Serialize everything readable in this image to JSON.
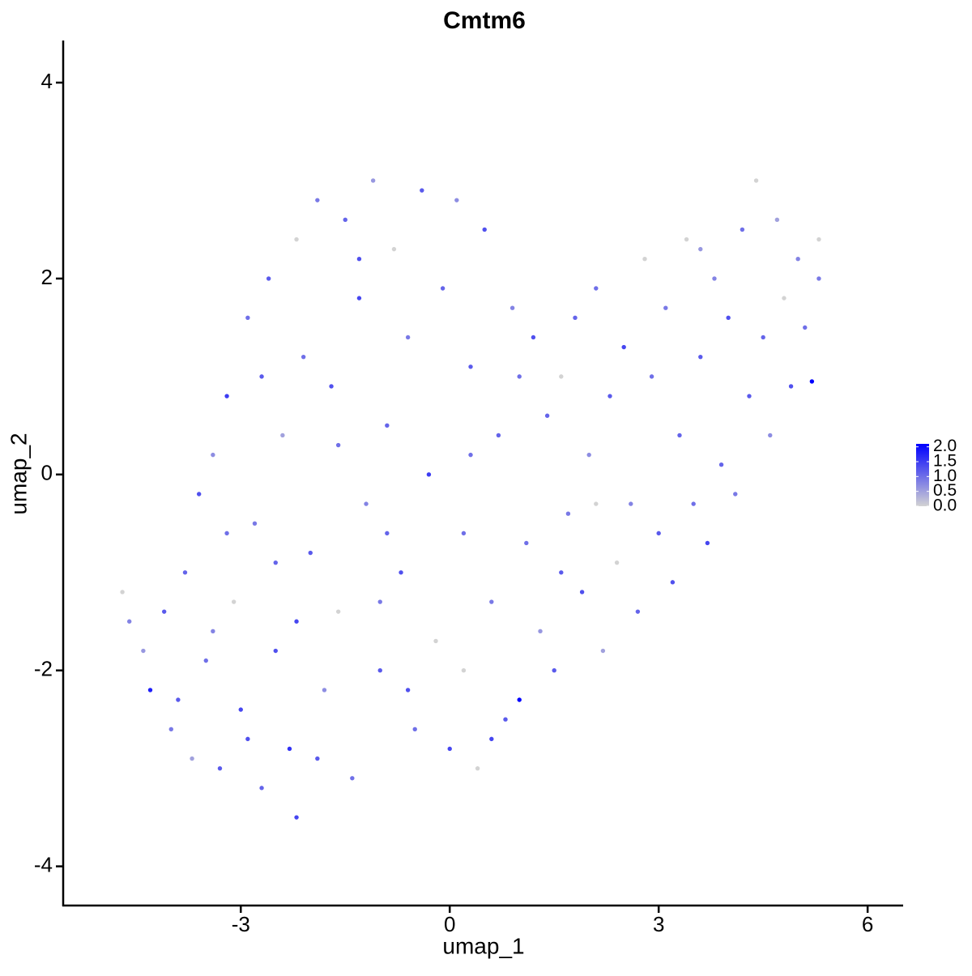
{
  "chart_data": {
    "type": "scatter",
    "title": "Cmtm6",
    "x_label": "umap_1",
    "y_label": "umap_2",
    "xlim": [
      -5.55,
      6.51
    ],
    "ylim": [
      -4.4,
      4.43
    ],
    "xticks": [
      -3,
      0,
      3,
      6
    ],
    "yticks": [
      -4,
      -2,
      0,
      2,
      4
    ],
    "low_color": "#d3d3d3",
    "high_color": "#0000ff",
    "colorlim": [
      0,
      2.1
    ],
    "color_ticks": [
      {
        "value": 0,
        "label": "0.0"
      },
      {
        "value": 0.5,
        "label": "0.5"
      },
      {
        "value": 1,
        "label": "1.0"
      },
      {
        "value": 1.5,
        "label": "1.5"
      },
      {
        "value": 2,
        "label": "2.0"
      }
    ],
    "x": [
      -4.7,
      -4.6,
      -4.4,
      -4.3,
      -4.1,
      -4.0,
      -3.8,
      -3.7,
      -3.6,
      -3.5,
      -3.4,
      -3.3,
      -3.2,
      -3.1,
      -3.0,
      -2.9,
      -2.8,
      -2.7,
      -2.6,
      -2.5,
      -2.4,
      -2.3,
      -2.2,
      -2.2,
      -2.1,
      -2.0,
      -1.9,
      -1.8,
      -1.7,
      -1.6,
      -1.5,
      -1.4,
      -1.3,
      -1.2,
      -1.1,
      -1.0,
      -0.9,
      -0.8,
      -0.7,
      -0.6,
      -0.5,
      -0.4,
      -0.3,
      -0.2,
      -0.1,
      0.0,
      0.1,
      0.2,
      0.3,
      0.4,
      0.5,
      0.6,
      0.7,
      0.8,
      0.9,
      1.0,
      1.1,
      1.2,
      1.3,
      1.4,
      1.5,
      1.6,
      1.7,
      1.8,
      1.9,
      2.0,
      2.1,
      2.2,
      2.3,
      2.4,
      2.5,
      2.6,
      2.7,
      2.8,
      2.9,
      3.0,
      3.1,
      3.2,
      3.3,
      3.4,
      3.5,
      3.6,
      3.7,
      3.8,
      3.9,
      4.0,
      4.1,
      4.2,
      4.3,
      4.4,
      4.5,
      4.6,
      4.7,
      4.8,
      4.9,
      5.0,
      5.1,
      5.2,
      5.3,
      5.3,
      -3.9,
      -3.4,
      -2.9,
      -2.5,
      -1.9,
      -1.6,
      -1.0,
      -0.6,
      0.2,
      0.6,
      -2.7,
      -3.2,
      -1.3,
      0.3,
      1.6,
      2.1,
      -0.9,
      -2.2,
      1.0,
      3.6
    ],
    "y": [
      -1.2,
      -1.5,
      -1.8,
      -2.2,
      -1.4,
      -2.6,
      -1.0,
      -2.9,
      -0.2,
      -1.9,
      0.2,
      -3.0,
      0.8,
      -1.3,
      -2.4,
      1.6,
      -0.5,
      -3.2,
      2.0,
      -1.8,
      0.4,
      -2.8,
      2.4,
      -3.5,
      1.2,
      -0.8,
      2.8,
      -2.2,
      0.9,
      -1.4,
      2.6,
      -3.1,
      1.8,
      -0.3,
      3.0,
      -2.0,
      0.5,
      2.3,
      -1.0,
      1.4,
      -2.6,
      2.9,
      0.0,
      -1.7,
      1.9,
      -2.8,
      2.8,
      -0.6,
      1.1,
      -3.0,
      2.5,
      -1.3,
      0.4,
      -2.5,
      1.7,
      -2.3,
      -0.7,
      1.4,
      -1.6,
      0.6,
      -2.0,
      1.0,
      -0.4,
      1.6,
      -1.2,
      0.2,
      1.9,
      -1.8,
      0.8,
      -0.9,
      1.3,
      -0.3,
      -1.4,
      2.2,
      1.0,
      -0.6,
      1.7,
      -1.1,
      0.4,
      2.4,
      -0.3,
      1.2,
      -0.7,
      2.0,
      0.1,
      1.6,
      -0.2,
      2.5,
      0.8,
      3.0,
      1.4,
      0.4,
      2.6,
      1.8,
      0.9,
      2.2,
      1.5,
      0.95,
      2.0,
      2.4,
      -2.3,
      -1.6,
      -2.7,
      -0.9,
      -2.9,
      0.3,
      -1.3,
      -2.2,
      -2.0,
      -2.7,
      1.0,
      -0.6,
      2.2,
      0.2,
      -1.0,
      -0.3,
      -0.6,
      -1.5,
      1.0,
      2.3
    ],
    "values": [
      0,
      0.8,
      0.6,
      1.8,
      1.2,
      0.9,
      1.1,
      0.5,
      1.3,
      1.0,
      0.7,
      1.2,
      1.5,
      0,
      1.4,
      1.0,
      0.9,
      1.1,
      1.2,
      1.3,
      0.5,
      1.6,
      0,
      1.4,
      1.0,
      1.2,
      0.9,
      0.7,
      1.3,
      0,
      1.1,
      1.0,
      1.4,
      0.8,
      0.6,
      1.2,
      1.1,
      0,
      1.3,
      0.9,
      1.0,
      1.2,
      1.5,
      0,
      1.1,
      1.4,
      0.7,
      1.0,
      1.2,
      0,
      1.3,
      0.9,
      1.1,
      1.2,
      0.8,
      2.1,
      1.0,
      1.3,
      0.6,
      1.1,
      1.2,
      0,
      0.9,
      1.1,
      1.3,
      0.7,
      1.0,
      0.5,
      1.2,
      0,
      1.4,
      0.8,
      1.1,
      0,
      1.0,
      1.2,
      0.9,
      1.3,
      1.1,
      0,
      1.0,
      1.2,
      1.4,
      0.8,
      1.1,
      1.3,
      0.9,
      1.0,
      1.2,
      0,
      1.1,
      0.7,
      0.5,
      0,
      1.3,
      0.8,
      1.0,
      2.1,
      0.9,
      0,
      1.2,
      0.8,
      1.3,
      1.1,
      1.2,
      1.0,
      0.9,
      1.3,
      0,
      1.4,
      1.2,
      1.0,
      1.3,
      1.0,
      1.2,
      0,
      1.1,
      1.4,
      1.0,
      0.6
    ]
  }
}
